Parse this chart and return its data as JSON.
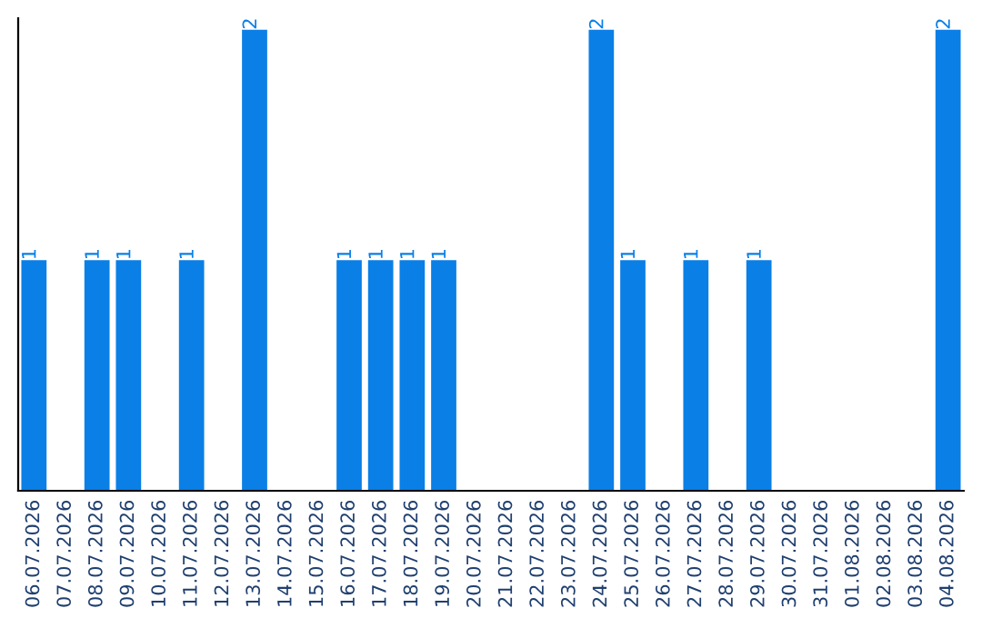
{
  "chart_data": {
    "type": "bar",
    "categories": [
      "06.07.2026",
      "07.07.2026",
      "08.07.2026",
      "09.07.2026",
      "10.07.2026",
      "11.07.2026",
      "12.07.2026",
      "13.07.2026",
      "14.07.2026",
      "15.07.2026",
      "16.07.2026",
      "17.07.2026",
      "18.07.2026",
      "19.07.2026",
      "20.07.2026",
      "21.07.2026",
      "22.07.2026",
      "23.07.2026",
      "24.07.2026",
      "25.07.2026",
      "26.07.2026",
      "27.07.2026",
      "28.07.2026",
      "29.07.2026",
      "30.07.2026",
      "31.07.2026",
      "01.08.2026",
      "02.08.2026",
      "03.08.2026",
      "04.08.2026"
    ],
    "values": [
      1,
      0,
      1,
      1,
      0,
      1,
      0,
      2,
      0,
      0,
      1,
      1,
      1,
      1,
      0,
      0,
      0,
      0,
      2,
      1,
      0,
      1,
      0,
      1,
      0,
      0,
      0,
      0,
      0,
      2
    ],
    "value_labels": [
      "1",
      null,
      "1",
      "1",
      null,
      "1",
      null,
      "2",
      null,
      null,
      "1",
      "1",
      "1",
      "1",
      null,
      null,
      null,
      null,
      "2",
      "1",
      null,
      "1",
      null,
      "1",
      null,
      null,
      null,
      null,
      null,
      "2"
    ],
    "color": "#0a7fe6",
    "ylim": [
      0,
      2.05
    ],
    "tick_labels": "x",
    "grid": false,
    "legend": false
  }
}
